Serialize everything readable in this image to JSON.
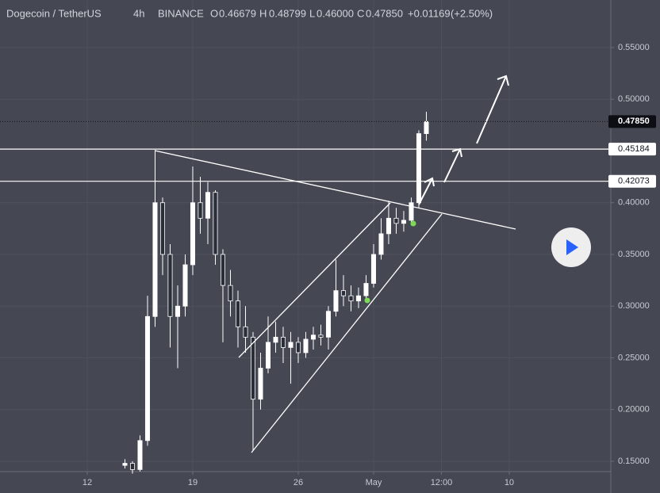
{
  "header": {
    "symbol": "Dogecoin / TetherUS",
    "interval": "4h",
    "exchange": "BINANCE",
    "o_label": "O",
    "o_value": "0.46679",
    "h_label": "H",
    "h_value": "0.48799",
    "l_label": "L",
    "l_value": "0.46000",
    "c_label": "C",
    "c_value": "0.47850",
    "change": "+0.01169",
    "change_pct": "(+2.50%)"
  },
  "chart_data": {
    "type": "candlestick",
    "x": [
      14.5,
      15,
      15.5,
      16,
      16.5,
      17,
      17.5,
      18,
      18.5,
      19,
      19.5,
      20,
      20.5,
      21,
      21.5,
      22,
      22.5,
      23,
      23.5,
      24,
      24.5,
      25,
      25.5,
      26,
      26.5,
      27,
      27.5,
      28,
      28.5,
      29,
      29.5,
      30,
      30.5,
      31,
      31.5,
      32,
      32.5,
      33,
      33.5,
      34,
      34.5
    ],
    "open": [
      0.146,
      0.148,
      0.142,
      0.17,
      0.29,
      0.4,
      0.35,
      0.29,
      0.3,
      0.34,
      0.4,
      0.385,
      0.41,
      0.35,
      0.32,
      0.305,
      0.28,
      0.27,
      0.21,
      0.24,
      0.265,
      0.27,
      0.26,
      0.265,
      0.255,
      0.268,
      0.272,
      0.27,
      0.295,
      0.315,
      0.31,
      0.305,
      0.31,
      0.322,
      0.35,
      0.37,
      0.385,
      0.38,
      0.383,
      0.4,
      0.46679
    ],
    "high": [
      0.152,
      0.15,
      0.175,
      0.31,
      0.451,
      0.405,
      0.36,
      0.32,
      0.35,
      0.435,
      0.425,
      0.42,
      0.412,
      0.355,
      0.335,
      0.315,
      0.3,
      0.275,
      0.255,
      0.29,
      0.285,
      0.28,
      0.275,
      0.27,
      0.275,
      0.28,
      0.282,
      0.3,
      0.345,
      0.33,
      0.32,
      0.318,
      0.33,
      0.36,
      0.385,
      0.402,
      0.395,
      0.392,
      0.405,
      0.47,
      0.48799
    ],
    "low": [
      0.143,
      0.138,
      0.14,
      0.165,
      0.28,
      0.33,
      0.26,
      0.24,
      0.29,
      0.33,
      0.37,
      0.36,
      0.34,
      0.265,
      0.29,
      0.26,
      0.255,
      0.16,
      0.2,
      0.235,
      0.255,
      0.245,
      0.225,
      0.245,
      0.25,
      0.258,
      0.262,
      0.258,
      0.29,
      0.3,
      0.295,
      0.298,
      0.305,
      0.318,
      0.345,
      0.36,
      0.37,
      0.372,
      0.378,
      0.395,
      0.46
    ],
    "close": [
      0.148,
      0.142,
      0.17,
      0.29,
      0.4,
      0.35,
      0.29,
      0.3,
      0.34,
      0.4,
      0.385,
      0.41,
      0.35,
      0.32,
      0.305,
      0.28,
      0.27,
      0.21,
      0.24,
      0.265,
      0.27,
      0.26,
      0.265,
      0.255,
      0.268,
      0.272,
      0.27,
      0.295,
      0.315,
      0.31,
      0.305,
      0.31,
      0.322,
      0.35,
      0.37,
      0.385,
      0.38,
      0.383,
      0.4,
      0.4668,
      0.4785
    ],
    "up_color": "#ffffff",
    "down_color": "#2a2e39",
    "wick_color": "#ffffff",
    "xlim": [
      6.21,
      46.74
    ],
    "xticks": [
      12,
      19,
      26,
      {
        "value": 31,
        "label": "May"
      },
      {
        "value": 35.5,
        "label": "12:00"
      },
      {
        "value": 40,
        "label": "10"
      }
    ],
    "ylim": [
      0.14,
      0.596
    ],
    "yticks": [
      {
        "value": 0.15,
        "label": "0.15000"
      },
      {
        "value": 0.2,
        "label": "0.20000"
      },
      {
        "value": 0.25,
        "label": "0.25000"
      },
      {
        "value": 0.3,
        "label": "0.30000"
      },
      {
        "value": 0.35,
        "label": "0.35000"
      },
      {
        "value": 0.4,
        "label": "0.40000"
      },
      {
        "value": 0.5,
        "label": "0.50000"
      },
      {
        "value": 0.55,
        "label": "0.55000"
      }
    ],
    "grid": true,
    "price_lines": [
      {
        "value": 0.45184,
        "label": "0.45184"
      },
      {
        "value": 0.42073,
        "label": "0.42073"
      }
    ],
    "last_price": {
      "value": 0.4785,
      "label": "0.47850"
    }
  }
}
